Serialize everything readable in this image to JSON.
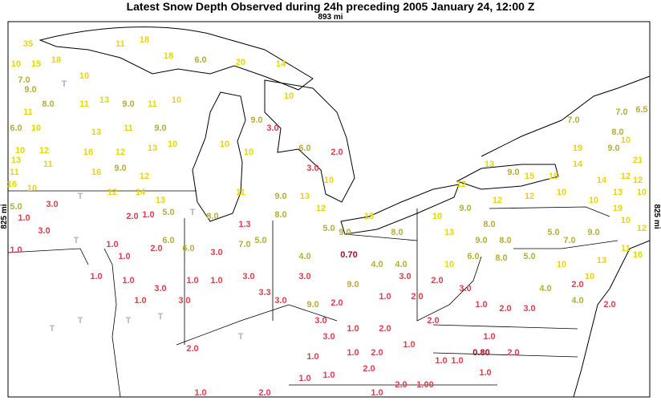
{
  "header": {
    "title": "Latest Snow Depth Observed during 24h preceding 2005 January 24, 12:00 Z",
    "width_label": "893 mi",
    "height_label": "825 mi"
  },
  "color_scale": [
    {
      "min": 10,
      "color": "#e6d800"
    },
    {
      "min": 4,
      "color": "#b5ad3c"
    },
    {
      "min": 1,
      "color": "#d8404e"
    },
    {
      "min": 0,
      "color": "#a01020"
    }
  ],
  "trace_color": "#b4b4b4",
  "labels": [
    "35",
    "10",
    "15",
    "18",
    "7.0",
    "9.0",
    "T",
    "8.0",
    "11",
    "6.0",
    "10",
    "10",
    "12",
    "13",
    "11",
    "11",
    "16",
    "10",
    "5.0",
    "3.0",
    "1.0",
    "3.0",
    "1.0",
    "T",
    "T",
    "10",
    "11",
    "18",
    "18",
    "6.0",
    "20",
    "14",
    "11",
    "13",
    "9.0",
    "11",
    "10",
    "13",
    "11",
    "9.0",
    "16",
    "12",
    "13",
    "10",
    "16",
    "9.0",
    "12",
    "12",
    "14",
    "13",
    "2.0",
    "1.0",
    "5.0",
    "T",
    "8.0",
    "1.3",
    "1.0",
    "1.0",
    "2.0",
    "6.0",
    "6.0",
    "3.0",
    "7.0",
    "5.0",
    "1.0",
    "1.0",
    "3.0",
    "1.0",
    "1.0",
    "3.0",
    "1.0",
    "3.0",
    "3.3",
    "3.0",
    "T",
    "T",
    "T",
    "2.0",
    "T",
    "T",
    "1.0",
    "2.0",
    "10",
    "9.0",
    "3.0",
    "10",
    "10",
    "6.0",
    "2.0",
    "3.0",
    "10",
    "11",
    "9.0",
    "13",
    "12",
    "8.0",
    "5.0",
    "9.0",
    "13",
    "8.0",
    "4.0",
    "0.70",
    "4.0",
    "4.0",
    "3.0",
    "9.0",
    "3.0",
    "9.0",
    "2.0",
    "1.0",
    "2.0",
    "3.0",
    "1.0",
    "2.0",
    "2.0",
    "3.0",
    "1.0",
    "1.0",
    "2.0",
    "1.0",
    "1.0",
    "1.0",
    "1.0",
    "2.0",
    "2.0",
    "1.0",
    "1.00",
    "1.0",
    "0.80",
    "1.0",
    "2.0",
    "1.0",
    "2.0",
    "3.0",
    "1.0",
    "3.0",
    "2.0",
    "10",
    "6.0",
    "8.0",
    "5.0",
    "10",
    "10",
    "13",
    "11",
    "16",
    "4.0",
    "2.0",
    "2.0",
    "4.0",
    "10",
    "9.0",
    "12",
    "12",
    "10",
    "10",
    "13",
    "12",
    "13",
    "9.0",
    "8.0",
    "5.0",
    "7.0",
    "9.0",
    "12",
    "13",
    "9.0",
    "15",
    "15",
    "14",
    "14",
    "12",
    "10",
    "19",
    "9.0",
    "10",
    "21",
    "8.0",
    "7.0",
    "7.0",
    "6.5",
    "10",
    "12",
    "19",
    "8.0"
  ]
}
